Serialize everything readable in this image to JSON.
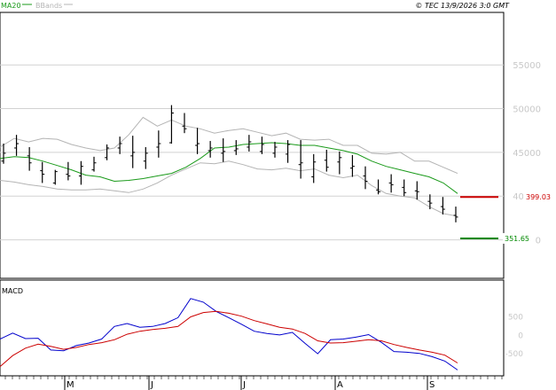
{
  "header": {
    "legend": [
      {
        "label": "MA20",
        "color": "#1a9a1a"
      },
      {
        "label": "BBands",
        "color": "#b4b4b4"
      }
    ],
    "copyright": "© TEC 13/9/2026 3:0 GMT"
  },
  "colors": {
    "price_bar": "#000000",
    "ma20": "#1a9a1a",
    "bbands": "#b4b4b4",
    "grid": "#d2d2d2",
    "resistance": "#cc0000",
    "support": "#008800",
    "macd_line": "#0000cc",
    "signal_line": "#cc0000"
  },
  "chart_data": [
    {
      "type": "line",
      "panel": "price",
      "y_ticks": [
        "55000",
        "50000",
        "45000",
        "40000",
        "35000"
      ],
      "ylim": [
        30600,
        61000
      ],
      "x_labels": [
        "M",
        "J",
        "J",
        "A",
        "S"
      ],
      "grid": true,
      "series": [
        {
          "name": "MA20",
          "color": "#1a9a1a",
          "values": [
            44300,
            44500,
            44400,
            44000,
            43500,
            43000,
            42400,
            42200,
            41700,
            41800,
            42000,
            42300,
            42600,
            43300,
            44300,
            45500,
            45600,
            45900,
            46000,
            46100,
            46000,
            45800,
            45800,
            45500,
            45200,
            44800,
            44000,
            43400,
            43000,
            42600,
            42200,
            41500,
            40300
          ]
        },
        {
          "name": "BBands",
          "color": "#b4b4b4",
          "upper": [
            45600,
            46600,
            46200,
            46600,
            46500,
            45900,
            45500,
            45200,
            45500,
            47000,
            49000,
            48000,
            48700,
            48000,
            47700,
            47200,
            47500,
            47700,
            47300,
            46900,
            47200,
            46500,
            46400,
            46500,
            45800,
            45800,
            44900,
            44800,
            45000,
            44000,
            44000,
            43300,
            42600
          ],
          "lower": [
            41800,
            41600,
            41300,
            41100,
            40800,
            40700,
            40700,
            40800,
            40600,
            40400,
            40800,
            41500,
            42400,
            43100,
            43800,
            43700,
            44000,
            43600,
            43100,
            43000,
            43200,
            42900,
            43100,
            42400,
            42100,
            42400,
            41200,
            40300,
            40000,
            39800,
            38800,
            38000,
            37700
          ]
        },
        {
          "name": "OHLC",
          "color": "#000000",
          "ohlc": [
            [
              44000,
              46000,
              43700,
              44900
            ],
            [
              45500,
              47000,
              44600,
              46000
            ],
            [
              44600,
              45600,
              42900,
              43800
            ],
            [
              42900,
              43900,
              41500,
              42500
            ],
            [
              41500,
              43000,
              41300,
              42800
            ],
            [
              42500,
              43900,
              41800,
              42300
            ],
            [
              42300,
              44000,
              41300,
              43400
            ],
            [
              43000,
              44500,
              42800,
              43800
            ],
            [
              44400,
              45900,
              44100,
              45500
            ],
            [
              45500,
              46800,
              44800,
              46000
            ],
            [
              44600,
              46900,
              43200,
              45000
            ],
            [
              44000,
              45600,
              43100,
              44900
            ],
            [
              45600,
              47500,
              44400,
              46000
            ],
            [
              46100,
              50400,
              46000,
              49500
            ],
            [
              48000,
              49500,
              47200,
              47700
            ],
            [
              45800,
              47800,
              44800,
              46000
            ],
            [
              45200,
              46300,
              44400,
              45500
            ],
            [
              44900,
              46600,
              43900,
              45100
            ],
            [
              45200,
              46400,
              44700,
              45400
            ],
            [
              45600,
              47000,
              45100,
              46200
            ],
            [
              45100,
              46800,
              44800,
              45900
            ],
            [
              44900,
              46200,
              44400,
              45600
            ],
            [
              44800,
              46400,
              43800,
              45900
            ],
            [
              43600,
              46400,
              42000,
              43800
            ],
            [
              42200,
              44800,
              41500,
              43900
            ],
            [
              44100,
              45300,
              42800,
              43300
            ],
            [
              43900,
              45100,
              42500,
              44400
            ],
            [
              43200,
              44700,
              42200,
              43400
            ],
            [
              42300,
              43400,
              40800,
              41700
            ],
            [
              40700,
              41900,
              40200,
              40500
            ],
            [
              41500,
              42500,
              40400,
              41300
            ],
            [
              41000,
              41900,
              40000,
              40400
            ],
            [
              40600,
              41700,
              39600,
              40500
            ],
            [
              39400,
              40200,
              38500,
              39200
            ],
            [
              38800,
              39900,
              37900,
              38500
            ],
            [
              37800,
              38800,
              37000,
              37600
            ]
          ]
        },
        {
          "name": "Resistance",
          "color": "#cc0000",
          "level": 39903,
          "label": "399.03"
        },
        {
          "name": "Support",
          "color": "#008800",
          "level": 35165,
          "label": "351.65"
        }
      ]
    },
    {
      "type": "line",
      "panel": "macd",
      "title": "MACD",
      "y_ticks": [
        "500",
        "0",
        "-500"
      ],
      "ylim": [
        -1100,
        1500
      ],
      "series": [
        {
          "name": "MACD",
          "color": "#0000cc",
          "values": [
            -100,
            60,
            -90,
            -80,
            -400,
            -420,
            -280,
            -210,
            -100,
            240,
            320,
            220,
            240,
            320,
            480,
            1000,
            900,
            650,
            480,
            300,
            110,
            50,
            10,
            80,
            -220,
            -500,
            -120,
            -100,
            -50,
            20,
            -190,
            -440,
            -460,
            -490,
            -580,
            -700,
            -940
          ]
        },
        {
          "name": "Signal",
          "color": "#cc0000",
          "values": [
            -850,
            -550,
            -350,
            -240,
            -300,
            -380,
            -330,
            -250,
            -200,
            -120,
            30,
            110,
            160,
            190,
            240,
            500,
            620,
            650,
            600,
            520,
            400,
            310,
            220,
            170,
            50,
            -150,
            -210,
            -200,
            -160,
            -120,
            -150,
            -250,
            -330,
            -400,
            -460,
            -540,
            -750
          ]
        }
      ]
    }
  ]
}
